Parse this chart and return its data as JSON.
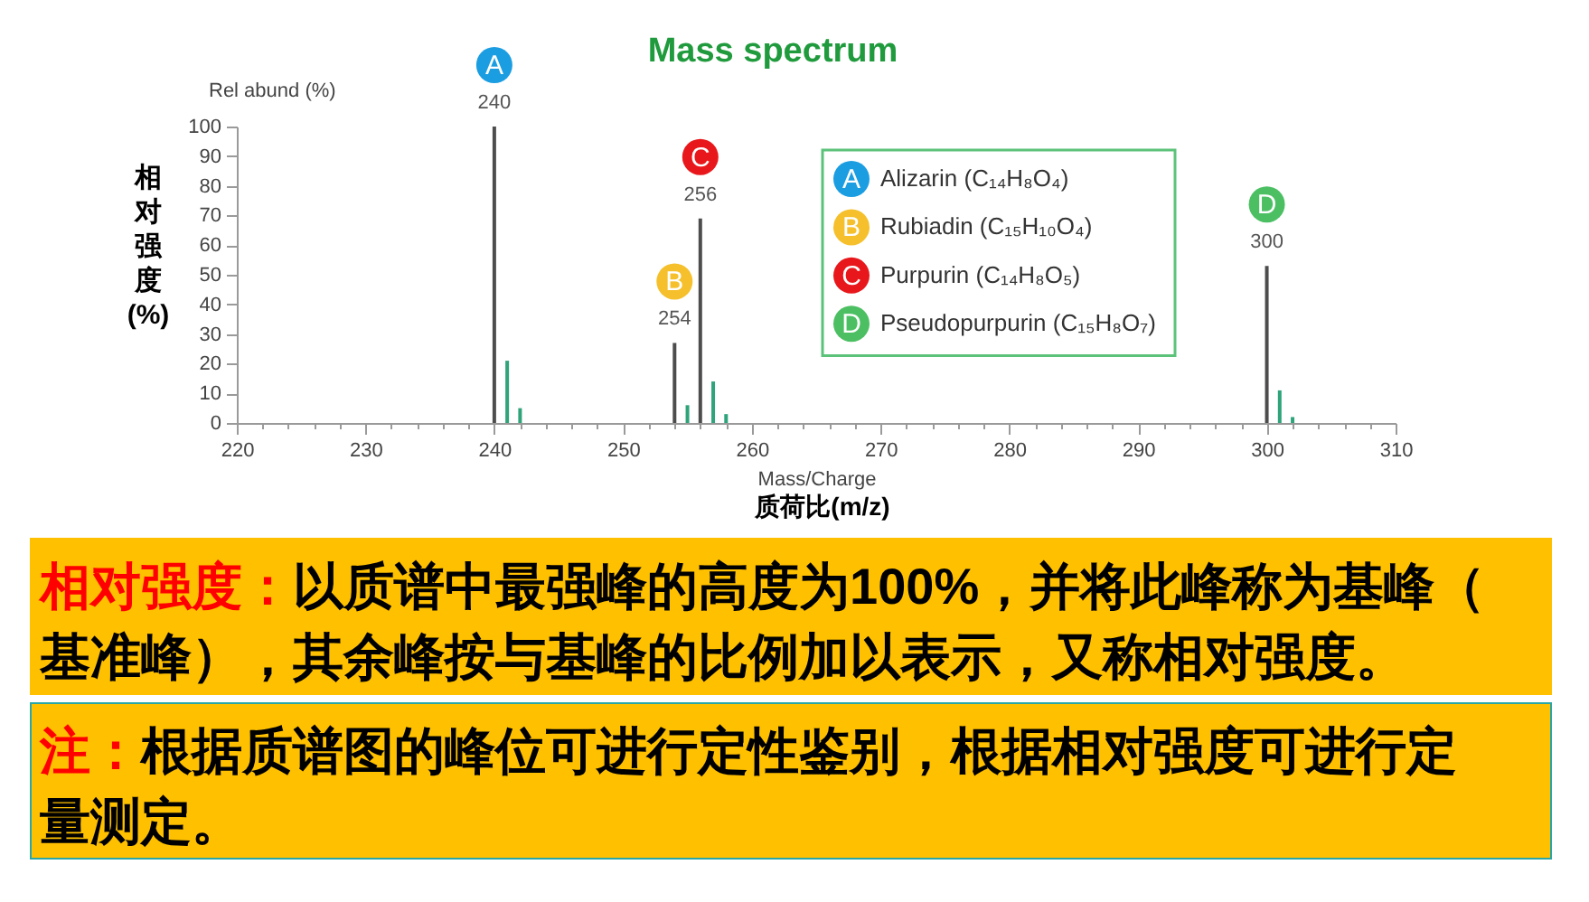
{
  "chart_data": {
    "type": "bar",
    "title": "Mass spectrum",
    "xlabel": "Mass/Charge",
    "ylabel": "Rel abund (%)",
    "xlim": [
      220,
      310
    ],
    "xticks": [
      220,
      {
        "value": 222,
        "label": null
      },
      {
        "value": 224,
        "label": null
      },
      {
        "value": 226,
        "label": null
      },
      {
        "value": 228,
        "label": null
      },
      230,
      {
        "value": 232,
        "label": null
      },
      {
        "value": 234,
        "label": null
      },
      {
        "value": 236,
        "label": null
      },
      {
        "value": 238,
        "label": null
      },
      240,
      {
        "value": 242,
        "label": null
      },
      {
        "value": 244,
        "label": null
      },
      {
        "value": 246,
        "label": null
      },
      {
        "value": 248,
        "label": null
      },
      250,
      {
        "value": 252,
        "label": null
      },
      {
        "value": 254,
        "label": null
      },
      {
        "value": 256,
        "label": null
      },
      {
        "value": 258,
        "label": null
      },
      260,
      {
        "value": 262,
        "label": null
      },
      {
        "value": 264,
        "label": null
      },
      {
        "value": 266,
        "label": null
      },
      {
        "value": 268,
        "label": null
      },
      270,
      {
        "value": 272,
        "label": null
      },
      {
        "value": 274,
        "label": null
      },
      {
        "value": 276,
        "label": null
      },
      {
        "value": 278,
        "label": null
      },
      280,
      {
        "value": 282,
        "label": null
      },
      {
        "value": 284,
        "label": null
      },
      {
        "value": 286,
        "label": null
      },
      {
        "value": 288,
        "label": null
      },
      290,
      {
        "value": 292,
        "label": null
      },
      {
        "value": 294,
        "label": null
      },
      {
        "value": 296,
        "label": null
      },
      {
        "value": 298,
        "label": null
      },
      300,
      {
        "value": 302,
        "label": null
      },
      {
        "value": 304,
        "label": null
      },
      {
        "value": 306,
        "label": null
      },
      {
        "value": 308,
        "label": null
      },
      310
    ],
    "ylim": [
      0,
      100
    ],
    "yticks": [
      0,
      10,
      20,
      30,
      40,
      50,
      60,
      70,
      80,
      90,
      100
    ],
    "series": [
      {
        "color": "#4d4d4d",
        "x": [
          240,
          254,
          256,
          300
        ],
        "values": [
          100,
          27,
          69,
          53
        ]
      },
      {
        "color": "#2fa37a",
        "x": [
          241,
          242,
          255,
          257,
          258,
          301,
          302
        ],
        "values": [
          21,
          5,
          6,
          14,
          3,
          11,
          2
        ]
      }
    ],
    "annotations": [
      {
        "text": "A",
        "x": 240,
        "y": 100
      },
      {
        "text": "240",
        "x": 240,
        "y": 100
      },
      {
        "text": "B",
        "x": 254,
        "y": 27
      },
      {
        "text": "254",
        "x": 254,
        "y": 27
      },
      {
        "text": "C",
        "x": 256,
        "y": 69
      },
      {
        "text": "256",
        "x": 256,
        "y": 69
      },
      {
        "text": "D",
        "x": 300,
        "y": 53
      },
      {
        "text": "300",
        "x": 300,
        "y": 53
      },
      "Alizarin (C₁₄H₈O₄)",
      "Rubiadin (C₁₅H₁₀O₄)",
      "Purpurin (C₁₄H₈O₅)",
      "Pseudopurpurin (C₁₅H₈O₇)",
      "相对强度(%)",
      "质荷比(m/z)",
      "相对强度：以质谱中最强峰的高度为100%，并将此峰称为基峰（基准峰），其余峰按与基峰的比例加以表示，又称相对强度。",
      "注：根据质谱图的峰位可进行定性鉴别，根据相对强度可进行定量测定。"
    ]
  }
}
